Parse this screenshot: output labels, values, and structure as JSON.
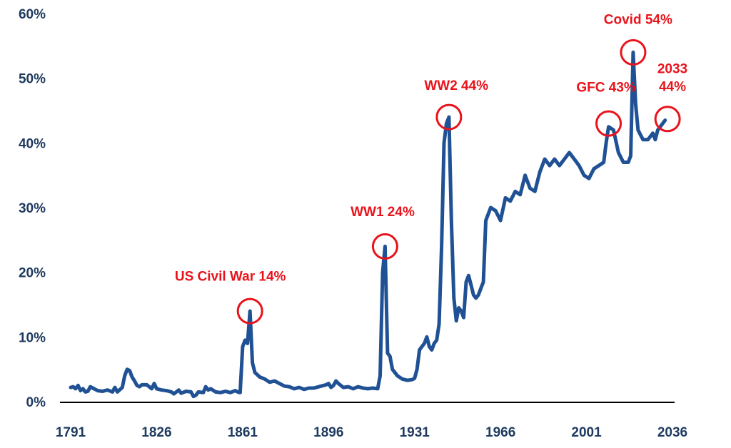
{
  "chart_data": {
    "type": "line",
    "title": "",
    "xlabel": "",
    "ylabel": "",
    "x_ticks": [
      "1791",
      "1826",
      "1861",
      "1896",
      "1931",
      "1966",
      "2001",
      "2036"
    ],
    "y_ticks": [
      "0%",
      "10%",
      "20%",
      "30%",
      "40%",
      "50%",
      "60%"
    ],
    "xlim": [
      1791,
      2036
    ],
    "ylim": [
      0,
      60
    ],
    "grid": false,
    "line_color": "#1f5194",
    "annotation_color": "#e8131b",
    "series": [
      {
        "points": [
          [
            1791,
            2.2
          ],
          [
            1792,
            2.3
          ],
          [
            1793,
            2.0
          ],
          [
            1794,
            2.5
          ],
          [
            1795,
            1.7
          ],
          [
            1796,
            2.0
          ],
          [
            1797,
            1.5
          ],
          [
            1798,
            1.6
          ],
          [
            1799,
            2.3
          ],
          [
            1800,
            2.1
          ],
          [
            1802,
            1.7
          ],
          [
            1804,
            1.6
          ],
          [
            1806,
            1.8
          ],
          [
            1808,
            1.5
          ],
          [
            1809,
            2.2
          ],
          [
            1810,
            1.5
          ],
          [
            1812,
            2.2
          ],
          [
            1813,
            4.0
          ],
          [
            1814,
            5.0
          ],
          [
            1815,
            4.8
          ],
          [
            1816,
            3.8
          ],
          [
            1817,
            3.2
          ],
          [
            1818,
            2.5
          ],
          [
            1819,
            2.3
          ],
          [
            1820,
            2.6
          ],
          [
            1822,
            2.6
          ],
          [
            1824,
            2.0
          ],
          [
            1825,
            2.8
          ],
          [
            1826,
            2.0
          ],
          [
            1828,
            1.8
          ],
          [
            1830,
            1.7
          ],
          [
            1832,
            1.5
          ],
          [
            1833,
            1.2
          ],
          [
            1835,
            1.8
          ],
          [
            1836,
            1.3
          ],
          [
            1838,
            1.6
          ],
          [
            1840,
            1.5
          ],
          [
            1841,
            0.8
          ],
          [
            1842,
            1.0
          ],
          [
            1843,
            1.5
          ],
          [
            1845,
            1.4
          ],
          [
            1846,
            2.3
          ],
          [
            1847,
            1.8
          ],
          [
            1848,
            2.0
          ],
          [
            1850,
            1.5
          ],
          [
            1852,
            1.4
          ],
          [
            1854,
            1.6
          ],
          [
            1856,
            1.4
          ],
          [
            1858,
            1.7
          ],
          [
            1859,
            1.5
          ],
          [
            1860,
            1.4
          ],
          [
            1861,
            8.5
          ],
          [
            1862,
            9.5
          ],
          [
            1863,
            9.0
          ],
          [
            1864,
            14.0
          ],
          [
            1865,
            6.0
          ],
          [
            1866,
            4.5
          ],
          [
            1868,
            3.8
          ],
          [
            1870,
            3.5
          ],
          [
            1872,
            3.0
          ],
          [
            1874,
            3.2
          ],
          [
            1876,
            2.8
          ],
          [
            1878,
            2.4
          ],
          [
            1880,
            2.3
          ],
          [
            1882,
            2.0
          ],
          [
            1884,
            2.2
          ],
          [
            1886,
            1.9
          ],
          [
            1888,
            2.1
          ],
          [
            1890,
            2.1
          ],
          [
            1893,
            2.4
          ],
          [
            1895,
            2.6
          ],
          [
            1896,
            2.8
          ],
          [
            1897,
            2.2
          ],
          [
            1898,
            2.5
          ],
          [
            1899,
            3.2
          ],
          [
            1900,
            2.8
          ],
          [
            1902,
            2.2
          ],
          [
            1904,
            2.3
          ],
          [
            1906,
            2.0
          ],
          [
            1908,
            2.3
          ],
          [
            1910,
            2.1
          ],
          [
            1912,
            2.0
          ],
          [
            1914,
            2.1
          ],
          [
            1916,
            2.0
          ],
          [
            1917,
            4.0
          ],
          [
            1918,
            20.0
          ],
          [
            1919,
            24.0
          ],
          [
            1920,
            7.5
          ],
          [
            1921,
            7.0
          ],
          [
            1922,
            5.0
          ],
          [
            1924,
            4.0
          ],
          [
            1926,
            3.5
          ],
          [
            1928,
            3.3
          ],
          [
            1930,
            3.4
          ],
          [
            1931,
            3.6
          ],
          [
            1932,
            5.0
          ],
          [
            1933,
            8.0
          ],
          [
            1934,
            8.5
          ],
          [
            1935,
            9.0
          ],
          [
            1936,
            10.0
          ],
          [
            1937,
            8.5
          ],
          [
            1938,
            8.0
          ],
          [
            1939,
            9.0
          ],
          [
            1940,
            9.5
          ],
          [
            1941,
            12.0
          ],
          [
            1942,
            24.0
          ],
          [
            1943,
            40.0
          ],
          [
            1944,
            43.0
          ],
          [
            1945,
            44.0
          ],
          [
            1946,
            28.0
          ],
          [
            1947,
            16.0
          ],
          [
            1948,
            12.5
          ],
          [
            1949,
            14.5
          ],
          [
            1950,
            14.0
          ],
          [
            1951,
            13.0
          ],
          [
            1952,
            18.5
          ],
          [
            1953,
            19.5
          ],
          [
            1954,
            18.0
          ],
          [
            1955,
            16.5
          ],
          [
            1956,
            16.0
          ],
          [
            1957,
            16.5
          ],
          [
            1958,
            17.5
          ],
          [
            1959,
            18.5
          ],
          [
            1960,
            28.0
          ],
          [
            1962,
            30.0
          ],
          [
            1964,
            29.5
          ],
          [
            1966,
            28.0
          ],
          [
            1968,
            31.5
          ],
          [
            1970,
            31.0
          ],
          [
            1972,
            32.5
          ],
          [
            1974,
            32.0
          ],
          [
            1976,
            35.0
          ],
          [
            1978,
            33.0
          ],
          [
            1980,
            32.5
          ],
          [
            1982,
            35.5
          ],
          [
            1984,
            37.5
          ],
          [
            1986,
            36.5
          ],
          [
            1988,
            37.5
          ],
          [
            1990,
            36.5
          ],
          [
            1992,
            37.5
          ],
          [
            1994,
            38.5
          ],
          [
            1996,
            37.5
          ],
          [
            1998,
            36.5
          ],
          [
            2000,
            35.0
          ],
          [
            2002,
            34.5
          ],
          [
            2004,
            36.0
          ],
          [
            2006,
            36.5
          ],
          [
            2008,
            37.0
          ],
          [
            2009,
            40.0
          ],
          [
            2010,
            42.5
          ],
          [
            2012,
            42.0
          ],
          [
            2014,
            38.5
          ],
          [
            2016,
            37.0
          ],
          [
            2018,
            37.0
          ],
          [
            2019,
            38.0
          ],
          [
            2020,
            54.0
          ],
          [
            2021,
            46.0
          ],
          [
            2022,
            42.0
          ],
          [
            2024,
            40.5
          ],
          [
            2026,
            40.5
          ],
          [
            2028,
            41.5
          ],
          [
            2029,
            40.5
          ],
          [
            2030,
            42.0
          ],
          [
            2031,
            42.5
          ],
          [
            2033,
            43.5
          ]
        ]
      }
    ],
    "annotations": [
      {
        "label": [
          "US Civil War 14%"
        ],
        "x": 1864,
        "y": 14,
        "label_x": 1856,
        "label_y": 18.7,
        "anchor": "middle"
      },
      {
        "label": [
          "WW1 24%"
        ],
        "x": 1919,
        "y": 24,
        "label_x": 1918,
        "label_y": 28.7,
        "anchor": "middle"
      },
      {
        "label": [
          "WW2 44%"
        ],
        "x": 1945,
        "y": 44,
        "label_x": 1948,
        "label_y": 48.2,
        "anchor": "middle"
      },
      {
        "label": [
          "GFC 43%"
        ],
        "x": 2010,
        "y": 43,
        "label_x": 2009,
        "label_y": 47.9,
        "anchor": "middle"
      },
      {
        "label": [
          "Covid 54%"
        ],
        "x": 2020,
        "y": 54,
        "label_x": 2022,
        "label_y": 58.4,
        "anchor": "middle"
      },
      {
        "label": [
          "2033",
          "44%"
        ],
        "x": 2034,
        "y": 43.7,
        "label_x": 2036,
        "label_y": 50.8,
        "anchor": "middle"
      }
    ]
  }
}
